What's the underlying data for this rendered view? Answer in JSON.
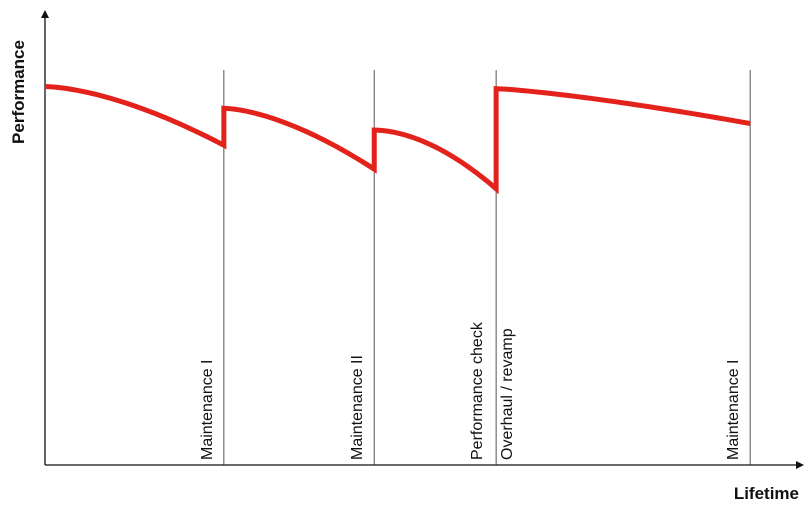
{
  "chart_data": {
    "type": "line",
    "xlabel": "Lifetime",
    "ylabel": "Performance",
    "xlim": [
      0,
      100
    ],
    "ylim": [
      0,
      100
    ],
    "grid": false,
    "line_color": "#e3231b",
    "event_line_color": "#555555",
    "events": [
      {
        "x": 24.5,
        "labels": [
          "Maintenance I"
        ]
      },
      {
        "x": 45.1,
        "labels": [
          "Maintenance II"
        ]
      },
      {
        "x": 61.8,
        "labels": [
          "Performance check",
          "Overhaul / revamp"
        ]
      },
      {
        "x": 96.6,
        "labels": [
          "Maintenance I"
        ]
      }
    ],
    "series": [
      {
        "segments": [
          {
            "x": [
              0,
              12,
              24.5
            ],
            "y": [
              87,
              82.5,
              73.5
            ],
            "drop_exp": 1.6
          },
          {
            "x": [
              24.5,
              35,
              45.1
            ],
            "y": [
              82,
              78,
              68
            ],
            "drop_exp": 1.6
          },
          {
            "x": [
              45.1,
              54,
              61.8
            ],
            "y": [
              77,
              72,
              63.5
            ],
            "drop_exp": 1.8
          },
          {
            "x": [
              61.8,
              80,
              96.6
            ],
            "y": [
              86.5,
              84,
              78.5
            ],
            "drop_exp": 1.3
          }
        ]
      }
    ]
  }
}
